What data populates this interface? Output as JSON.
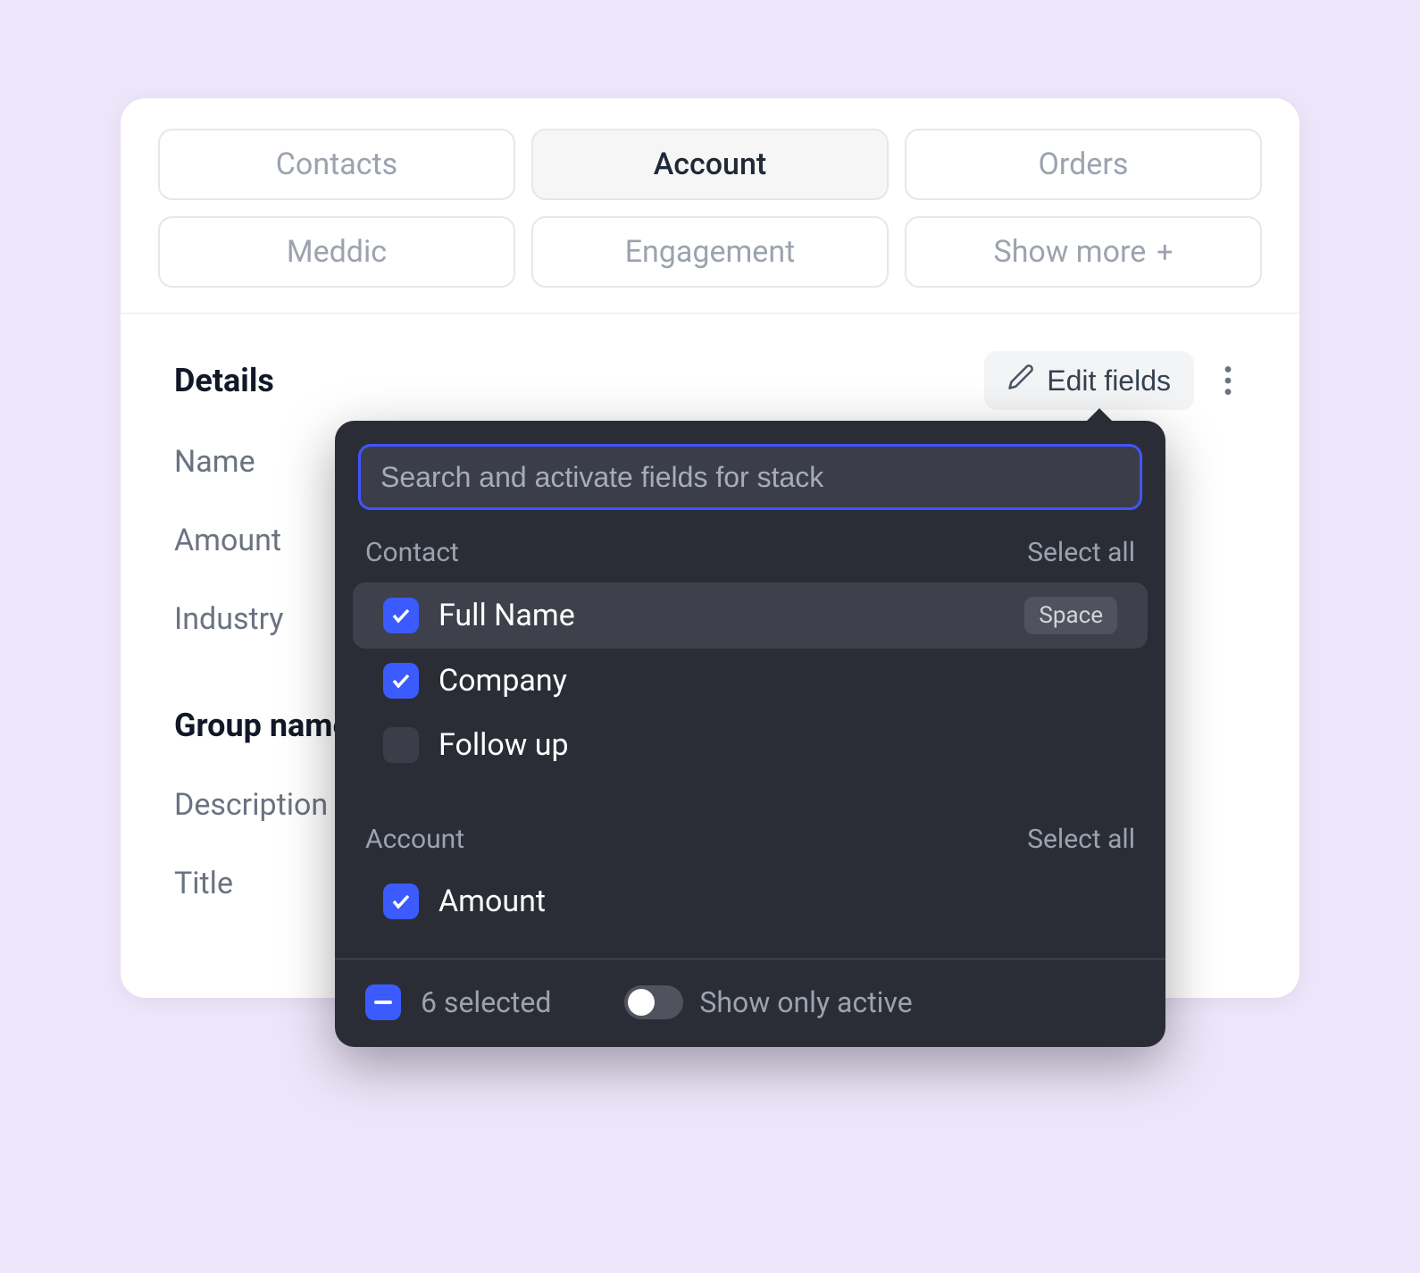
{
  "colors": {
    "page_bg": "#ede6fa",
    "card_bg": "#ffffff",
    "tab_border": "#e5e7eb",
    "tab_inactive_text": "#9ca3af",
    "tab_active_bg": "#f6f6f7",
    "tab_active_text": "#1f2937",
    "text_primary": "#111827",
    "text_muted": "#6b7280",
    "popover_bg": "#2b2d36",
    "popover_row_hover": "#3e414c",
    "popover_input_bg": "#3b3e49",
    "popover_text": "#ffffff",
    "popover_muted": "#9ca3af",
    "accent_blue": "#3b5bff",
    "focus_ring": "#4155ff",
    "kbd_bg": "#50535e",
    "toggle_track": "#50535e",
    "divider": "#4b4e59"
  },
  "tabs": [
    {
      "label": "Contacts",
      "active": false
    },
    {
      "label": "Account",
      "active": true
    },
    {
      "label": "Orders",
      "active": false
    },
    {
      "label": "Meddic",
      "active": false
    },
    {
      "label": "Engagement",
      "active": false
    },
    {
      "label": "Show more",
      "active": false,
      "has_plus": true
    }
  ],
  "details": {
    "section_title": "Details",
    "edit_button_label": "Edit fields",
    "fields": [
      "Name",
      "Amount",
      "Industry"
    ]
  },
  "group": {
    "title": "Group name",
    "fields": [
      "Description",
      "Title"
    ]
  },
  "popover": {
    "search_placeholder": "Search and activate fields for stack",
    "select_all_label": "Select all",
    "groups": [
      {
        "label": "Contact",
        "items": [
          {
            "label": "Full Name",
            "checked": true,
            "highlighted": true,
            "kbd": "Space"
          },
          {
            "label": "Company",
            "checked": true
          },
          {
            "label": "Follow up",
            "checked": false
          }
        ]
      },
      {
        "label": "Account",
        "items": [
          {
            "label": "Amount",
            "checked": true
          }
        ]
      }
    ],
    "footer": {
      "selected_text": "6 selected",
      "toggle_label": "Show only active",
      "toggle_on": false
    }
  }
}
